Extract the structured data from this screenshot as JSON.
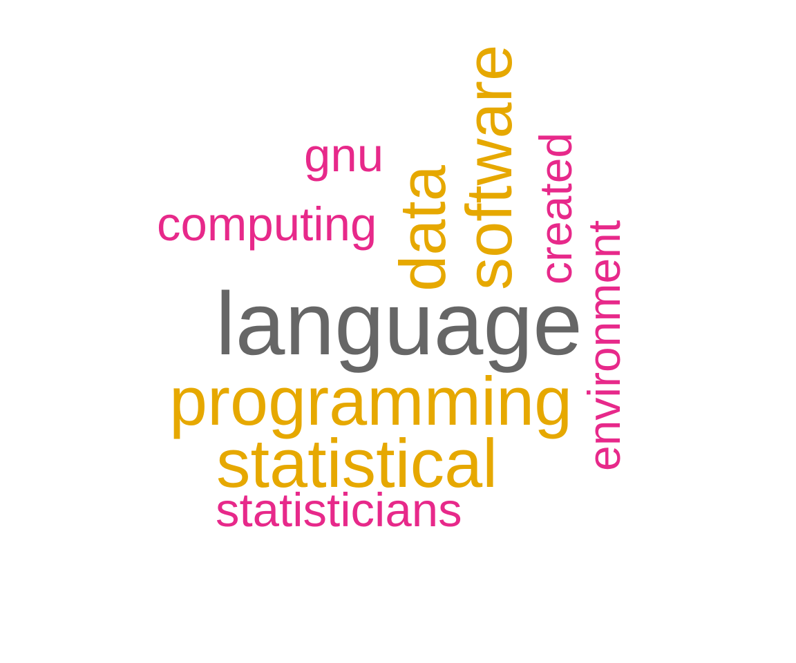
{
  "colors": {
    "gray": "#666666",
    "gold": "#E6A800",
    "pink": "#E7298A",
    "background": "#FFFFFF"
  },
  "words": {
    "language": "language",
    "programming": "programming",
    "statistical": "statistical",
    "software": "software",
    "data": "data",
    "computing": "computing",
    "gnu": "gnu",
    "created": "created",
    "environment": "environment",
    "statisticians": "statisticians"
  },
  "word_colors": {
    "language": "gray",
    "programming": "gold",
    "statistical": "gold",
    "software": "gold",
    "data": "gold",
    "computing": "pink",
    "gnu": "pink",
    "created": "pink",
    "environment": "pink",
    "statisticians": "pink"
  }
}
